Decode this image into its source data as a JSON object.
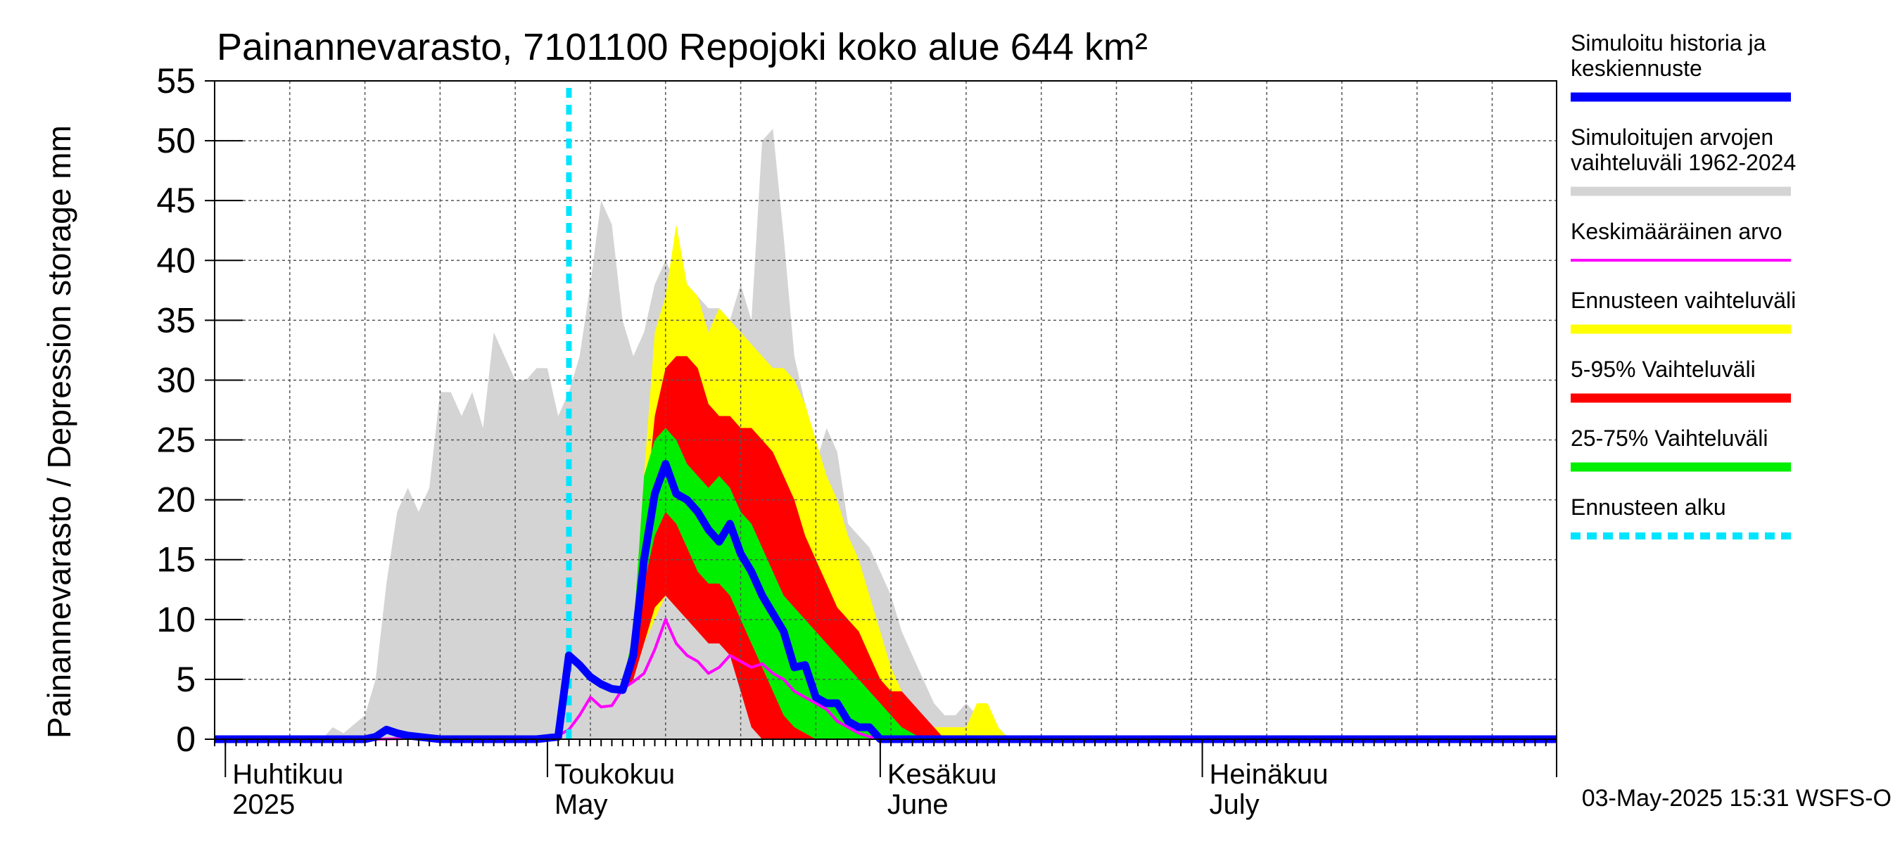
{
  "chart_data": {
    "type": "area",
    "title": "Painannevarasto, 7101100 Repojoki koko alue 644 km²",
    "ylabel": "Painannevarasto / Depression storage    mm",
    "ylim": [
      0,
      55
    ],
    "yticks": [
      0,
      5,
      10,
      15,
      20,
      25,
      30,
      35,
      40,
      45,
      50,
      55
    ],
    "xlim": [
      "2025-03-31",
      "2025-08-03"
    ],
    "grid": true,
    "legend_position": "right",
    "month_labels": [
      {
        "date": "2025-04-01",
        "line1": "Huhtikuu",
        "line2": "2025"
      },
      {
        "date": "2025-05-01",
        "line1": "Toukokuu",
        "line2": "May"
      },
      {
        "date": "2025-06-01",
        "line1": "Kesäkuu",
        "line2": "June"
      },
      {
        "date": "2025-07-01",
        "line1": "Heinäkuu",
        "line2": "July"
      }
    ],
    "forecast_start": "2025-05-03",
    "footer": "03-May-2025 15:31 WSFS-O",
    "legend": [
      {
        "label_lines": [
          "Simuloitu historia ja",
          "keskiennuste"
        ],
        "color": "#0000ff",
        "style": "solid"
      },
      {
        "label_lines": [
          "Simuloitujen arvojen",
          "vaihteluväli 1962-2024"
        ],
        "color": "#d4d4d4",
        "style": "solid"
      },
      {
        "label_lines": [
          "Keskimääräinen arvo"
        ],
        "color": "#ff00ff",
        "style": "thin"
      },
      {
        "label_lines": [
          "Ennusteen vaihteluväli"
        ],
        "color": "#ffff00",
        "style": "solid"
      },
      {
        "label_lines": [
          "5-95% Vaihteluväli"
        ],
        "color": "#ff0000",
        "style": "solid"
      },
      {
        "label_lines": [
          "25-75% Vaihteluväli"
        ],
        "color": "#00ee00",
        "style": "solid"
      },
      {
        "label_lines": [
          "Ennusteen alku"
        ],
        "color": "#00e5ff",
        "style": "dashed"
      }
    ],
    "historical_range": {
      "dates": [
        "2025-03-31",
        "2025-04-10",
        "2025-04-11",
        "2025-04-12",
        "2025-04-14",
        "2025-04-15",
        "2025-04-16",
        "2025-04-17",
        "2025-04-18",
        "2025-04-19",
        "2025-04-20",
        "2025-04-21",
        "2025-04-22",
        "2025-04-23",
        "2025-04-24",
        "2025-04-25",
        "2025-04-26",
        "2025-04-27",
        "2025-04-28",
        "2025-04-29",
        "2025-04-30",
        "2025-05-01",
        "2025-05-02",
        "2025-05-03",
        "2025-05-04",
        "2025-05-05",
        "2025-05-06",
        "2025-05-07",
        "2025-05-08",
        "2025-05-09",
        "2025-05-10",
        "2025-05-11",
        "2025-05-12",
        "2025-05-13",
        "2025-05-14",
        "2025-05-15",
        "2025-05-16",
        "2025-05-17",
        "2025-05-18",
        "2025-05-19",
        "2025-05-20",
        "2025-05-21",
        "2025-05-22",
        "2025-05-23",
        "2025-05-24",
        "2025-05-25",
        "2025-05-26",
        "2025-05-27",
        "2025-05-28",
        "2025-05-29",
        "2025-05-30",
        "2025-05-31",
        "2025-06-01",
        "2025-06-02",
        "2025-06-03",
        "2025-06-04",
        "2025-06-05",
        "2025-06-06",
        "2025-06-07",
        "2025-06-08",
        "2025-06-09",
        "2025-06-10",
        "2025-06-11",
        "2025-06-12",
        "2025-06-13",
        "2025-06-14",
        "2025-06-15",
        "2025-06-16",
        "2025-08-03"
      ],
      "max": [
        0,
        0,
        1,
        0.5,
        2,
        5,
        13,
        19,
        21,
        19,
        21,
        29,
        29,
        27,
        29,
        26,
        34,
        32,
        30,
        30,
        31,
        31,
        27,
        29,
        32,
        38,
        45,
        43,
        35,
        32,
        34,
        38,
        40,
        38,
        36,
        37,
        36,
        36,
        35,
        38,
        35,
        50,
        51,
        42,
        32,
        28,
        23,
        26,
        24,
        18,
        17,
        16,
        14,
        12,
        9,
        7,
        5,
        3,
        2,
        2,
        3,
        2,
        1,
        0.5,
        0.3,
        0,
        0,
        0,
        0
      ]
    },
    "forecast_outer": {
      "dates": [
        "2025-05-03",
        "2025-05-04",
        "2025-05-05",
        "2025-05-06",
        "2025-05-07",
        "2025-05-08",
        "2025-05-09",
        "2025-05-10",
        "2025-05-11",
        "2025-05-12",
        "2025-05-13",
        "2025-05-14",
        "2025-05-15",
        "2025-05-16",
        "2025-05-17",
        "2025-05-18",
        "2025-05-19",
        "2025-05-20",
        "2025-05-21",
        "2025-05-22",
        "2025-05-23",
        "2025-05-24",
        "2025-05-25",
        "2025-05-26",
        "2025-05-27",
        "2025-05-28",
        "2025-05-29",
        "2025-05-30",
        "2025-05-31",
        "2025-06-01",
        "2025-06-02",
        "2025-06-03",
        "2025-06-04",
        "2025-06-05",
        "2025-06-06",
        "2025-06-07",
        "2025-06-08",
        "2025-06-09",
        "2025-06-10",
        "2025-06-11",
        "2025-06-12",
        "2025-06-13",
        "2025-06-14"
      ],
      "low": [
        7,
        6,
        5,
        4.5,
        4,
        4,
        5,
        8,
        10,
        12,
        12,
        11,
        10,
        9,
        9,
        8,
        5,
        2,
        0,
        0,
        0,
        0,
        0,
        0,
        0,
        0,
        0,
        0,
        0,
        0,
        0,
        0,
        0,
        0,
        0,
        0,
        0,
        0,
        0,
        0,
        0,
        0,
        0
      ],
      "high": [
        7,
        6,
        5,
        4.5,
        4,
        4.5,
        9,
        22,
        34,
        37,
        43,
        38,
        37,
        34,
        36,
        35,
        34,
        33,
        32,
        31,
        31,
        30,
        28,
        25,
        22,
        20,
        17,
        15,
        12,
        9,
        6,
        4,
        2,
        1,
        1,
        1,
        1,
        1,
        3,
        3,
        1,
        0,
        0
      ]
    },
    "forecast_5_95": {
      "dates": [
        "2025-05-03",
        "2025-05-04",
        "2025-05-05",
        "2025-05-06",
        "2025-05-07",
        "2025-05-08",
        "2025-05-09",
        "2025-05-10",
        "2025-05-11",
        "2025-05-12",
        "2025-05-13",
        "2025-05-14",
        "2025-05-15",
        "2025-05-16",
        "2025-05-17",
        "2025-05-18",
        "2025-05-19",
        "2025-05-20",
        "2025-05-21",
        "2025-05-22",
        "2025-05-23",
        "2025-05-24",
        "2025-05-25",
        "2025-05-26",
        "2025-05-27",
        "2025-05-28",
        "2025-05-29",
        "2025-05-30",
        "2025-05-31",
        "2025-06-01",
        "2025-06-02",
        "2025-06-03",
        "2025-06-04",
        "2025-06-05",
        "2025-06-06",
        "2025-06-07",
        "2025-06-08"
      ],
      "low": [
        7,
        6,
        5,
        4.5,
        4,
        4,
        5,
        8,
        11,
        12,
        11,
        10,
        9,
        8,
        8,
        7,
        4,
        1,
        0,
        0,
        0,
        0,
        0,
        0,
        0,
        0,
        0,
        0,
        0,
        0,
        0,
        0,
        0,
        0,
        0,
        0,
        0
      ],
      "high": [
        7,
        6,
        5,
        4.5,
        4,
        4.5,
        7,
        18,
        27,
        31,
        32,
        32,
        31,
        28,
        27,
        27,
        26,
        26,
        25,
        24,
        22,
        20,
        17,
        15,
        13,
        11,
        10,
        9,
        7,
        5,
        4,
        4,
        3,
        2,
        1,
        0,
        0
      ]
    },
    "forecast_25_75": {
      "dates": [
        "2025-05-03",
        "2025-05-04",
        "2025-05-05",
        "2025-05-06",
        "2025-05-07",
        "2025-05-08",
        "2025-05-09",
        "2025-05-10",
        "2025-05-11",
        "2025-05-12",
        "2025-05-13",
        "2025-05-14",
        "2025-05-15",
        "2025-05-16",
        "2025-05-17",
        "2025-05-18",
        "2025-05-19",
        "2025-05-20",
        "2025-05-21",
        "2025-05-22",
        "2025-05-23",
        "2025-05-24",
        "2025-05-25",
        "2025-05-26",
        "2025-05-27",
        "2025-05-28",
        "2025-05-29",
        "2025-05-30",
        "2025-05-31",
        "2025-06-01",
        "2025-06-02",
        "2025-06-03",
        "2025-06-04",
        "2025-06-05",
        "2025-06-06"
      ],
      "low": [
        7,
        6,
        5,
        4.5,
        4,
        4.2,
        6,
        13,
        17,
        19,
        18,
        16,
        14,
        13,
        13,
        12,
        10,
        8,
        6,
        4,
        2,
        1,
        0.5,
        0,
        0,
        0,
        0,
        0,
        0,
        0,
        0,
        0,
        0,
        0,
        0
      ],
      "high": [
        7,
        6,
        5,
        4.5,
        4,
        4.5,
        9,
        22,
        25,
        26,
        25,
        23,
        22,
        21,
        22,
        21,
        19,
        18,
        16,
        14,
        12,
        11,
        10,
        9,
        8,
        7,
        6,
        5,
        4,
        3,
        2,
        1,
        0.5,
        0,
        0
      ]
    },
    "median_forecast": {
      "dates": [
        "2025-03-31",
        "2025-04-14",
        "2025-04-15",
        "2025-04-16",
        "2025-04-17",
        "2025-04-18",
        "2025-04-19",
        "2025-04-20",
        "2025-04-21",
        "2025-04-30",
        "2025-05-01",
        "2025-05-02",
        "2025-05-03",
        "2025-05-04",
        "2025-05-05",
        "2025-05-06",
        "2025-05-07",
        "2025-05-08",
        "2025-05-09",
        "2025-05-10",
        "2025-05-11",
        "2025-05-12",
        "2025-05-13",
        "2025-05-14",
        "2025-05-15",
        "2025-05-16",
        "2025-05-17",
        "2025-05-18",
        "2025-05-19",
        "2025-05-20",
        "2025-05-21",
        "2025-05-22",
        "2025-05-23",
        "2025-05-24",
        "2025-05-25",
        "2025-05-26",
        "2025-05-27",
        "2025-05-28",
        "2025-05-29",
        "2025-05-30",
        "2025-05-31",
        "2025-06-01",
        "2025-06-02",
        "2025-06-03",
        "2025-06-04",
        "2025-06-05",
        "2025-08-03"
      ],
      "values": [
        0,
        0,
        0.2,
        0.8,
        0.5,
        0.3,
        0.2,
        0.1,
        0,
        0,
        0.1,
        0.2,
        7,
        6.2,
        5.2,
        4.6,
        4.2,
        4.1,
        7,
        15,
        20.5,
        23,
        20.5,
        20,
        19,
        17.5,
        16.5,
        18,
        15.5,
        14,
        12,
        10.5,
        9,
        6,
        6.2,
        3.5,
        3,
        3,
        1.5,
        1,
        1,
        0,
        0,
        0,
        0,
        0,
        0
      ]
    },
    "mean_value": {
      "dates": [
        "2025-03-31",
        "2025-04-15",
        "2025-04-20",
        "2025-04-28",
        "2025-04-30",
        "2025-05-01",
        "2025-05-02",
        "2025-05-03",
        "2025-05-04",
        "2025-05-05",
        "2025-05-06",
        "2025-05-07",
        "2025-05-08",
        "2025-05-09",
        "2025-05-10",
        "2025-05-11",
        "2025-05-12",
        "2025-05-13",
        "2025-05-14",
        "2025-05-15",
        "2025-05-16",
        "2025-05-17",
        "2025-05-18",
        "2025-05-19",
        "2025-05-20",
        "2025-05-21",
        "2025-05-22",
        "2025-05-23",
        "2025-05-24",
        "2025-05-25",
        "2025-05-26",
        "2025-05-27",
        "2025-05-28",
        "2025-05-29",
        "2025-05-30",
        "2025-05-31",
        "2025-06-01",
        "2025-06-02",
        "2025-08-03"
      ],
      "values": [
        0,
        0,
        0.1,
        0,
        0,
        0.1,
        0.3,
        0.8,
        2,
        3.5,
        2.7,
        2.8,
        4.2,
        4.8,
        5.5,
        7.5,
        10,
        8,
        7,
        6.5,
        5.5,
        6,
        7,
        6.5,
        6,
        6.3,
        5.5,
        5,
        4,
        3.5,
        3,
        2.5,
        1.5,
        1,
        0.5,
        0.2,
        0.1,
        0,
        0
      ]
    }
  }
}
